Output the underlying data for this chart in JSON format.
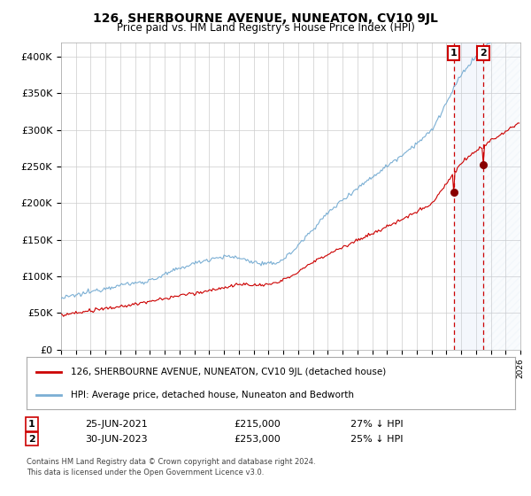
{
  "title": "126, SHERBOURNE AVENUE, NUNEATON, CV10 9JL",
  "subtitle": "Price paid vs. HM Land Registry's House Price Index (HPI)",
  "ylim": [
    0,
    420000
  ],
  "yticks": [
    0,
    50000,
    100000,
    150000,
    200000,
    250000,
    300000,
    350000,
    400000
  ],
  "ytick_labels": [
    "£0",
    "£50K",
    "£100K",
    "£150K",
    "£200K",
    "£250K",
    "£300K",
    "£350K",
    "£400K"
  ],
  "hpi_color": "#7bafd4",
  "price_color": "#cc0000",
  "annotation_color": "#cc0000",
  "background_color": "#ffffff",
  "grid_color": "#cccccc",
  "legend_label_price": "126, SHERBOURNE AVENUE, NUNEATON, CV10 9JL (detached house)",
  "legend_label_hpi": "HPI: Average price, detached house, Nuneaton and Bedworth",
  "marker1_date": "25-JUN-2021",
  "marker1_price": 215000,
  "marker1_label": "27% ↓ HPI",
  "marker2_date": "30-JUN-2023",
  "marker2_price": 253000,
  "marker2_label": "25% ↓ HPI",
  "footnote": "Contains HM Land Registry data © Crown copyright and database right 2024.\nThis data is licensed under the Open Government Licence v3.0.",
  "xstart_year": 1995,
  "xend_year": 2026
}
